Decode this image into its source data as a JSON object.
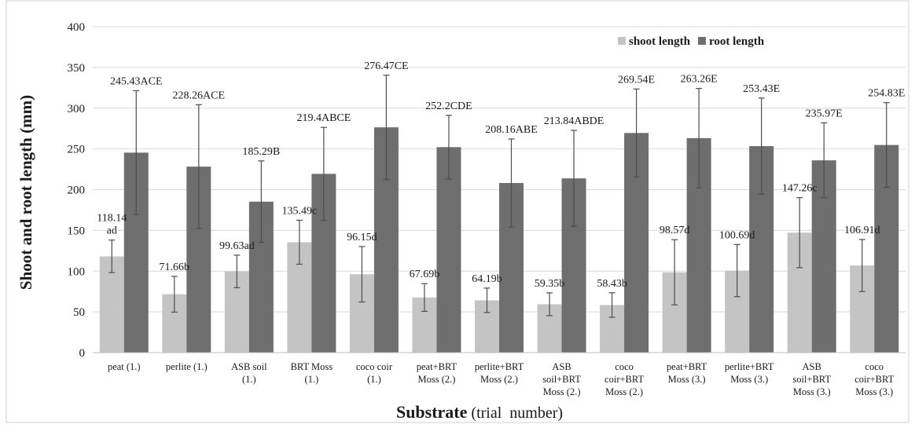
{
  "chart_data": {
    "type": "bar",
    "title": "",
    "xlabel_bold": "Substrate",
    "xlabel_rest": " (trial  number)",
    "ylabel": "Shoot and root length (mm)",
    "ylim": [
      0,
      400
    ],
    "yticks": [
      0,
      50,
      100,
      150,
      200,
      250,
      300,
      350,
      400
    ],
    "grid": true,
    "legend_position": "top-right",
    "categories": [
      [
        "peat (1.)"
      ],
      [
        "perlite (1.)"
      ],
      [
        "ASB soil",
        "(1.)"
      ],
      [
        "BRT Moss",
        "(1.)"
      ],
      [
        "coco coir",
        "(1.)"
      ],
      [
        "peat+BRT",
        "Moss (2.)"
      ],
      [
        "perlite+BRT",
        "Moss (2.)"
      ],
      [
        "ASB",
        "soil+BRT",
        "Moss (2.)"
      ],
      [
        "coco",
        "coir+BRT",
        "Moss (2.)"
      ],
      [
        "peat+BRT",
        "Moss (3.)"
      ],
      [
        "perlite+BRT",
        "Moss (3.)"
      ],
      [
        "ASB",
        "soil+BRT",
        "Moss (3.)"
      ],
      [
        "coco",
        "coir+BRT",
        "Moss (3.)"
      ]
    ],
    "series": [
      {
        "name": "shoot length",
        "color": "#c4c4c4",
        "values": [
          118.14,
          71.66,
          99.63,
          135.49,
          96.15,
          67.69,
          64.19,
          59.35,
          58.43,
          98.57,
          100.69,
          147.26,
          106.91
        ],
        "error": [
          20,
          22,
          20,
          27,
          34,
          17,
          15,
          14,
          15,
          40,
          32,
          43,
          32
        ],
        "labels": [
          [
            "118.14",
            "ad"
          ],
          [
            "71.66b"
          ],
          [
            "99.63ad"
          ],
          [
            "135.49c"
          ],
          [
            "96.15d"
          ],
          [
            "67.69b"
          ],
          [
            "64.19b"
          ],
          [
            "59.35b"
          ],
          [
            "58.43b"
          ],
          [
            "98.57d"
          ],
          [
            "100.69d"
          ],
          [
            "147.26c"
          ],
          [
            "106.91d"
          ]
        ]
      },
      {
        "name": "root length",
        "color": "#6e6e6e",
        "values": [
          245.43,
          228.26,
          185.29,
          219.4,
          276.47,
          252.2,
          208.16,
          213.84,
          269.54,
          263.26,
          253.43,
          235.97,
          254.83
        ],
        "error": [
          76,
          76,
          50,
          57,
          64,
          39,
          54,
          59,
          54,
          61,
          59,
          46,
          52
        ],
        "labels": [
          [
            "245.43ACE"
          ],
          [
            "228.26ACE"
          ],
          [
            "185.29B"
          ],
          [
            "219.4ABCE"
          ],
          [
            "276.47CE"
          ],
          [
            "252.2CDE"
          ],
          [
            "208.16ABE"
          ],
          [
            "213.84ABDE"
          ],
          [
            "269.54E"
          ],
          [
            "263.26E"
          ],
          [
            "253.43E"
          ],
          [
            "235.97E"
          ],
          [
            "254.83E"
          ]
        ]
      }
    ]
  }
}
